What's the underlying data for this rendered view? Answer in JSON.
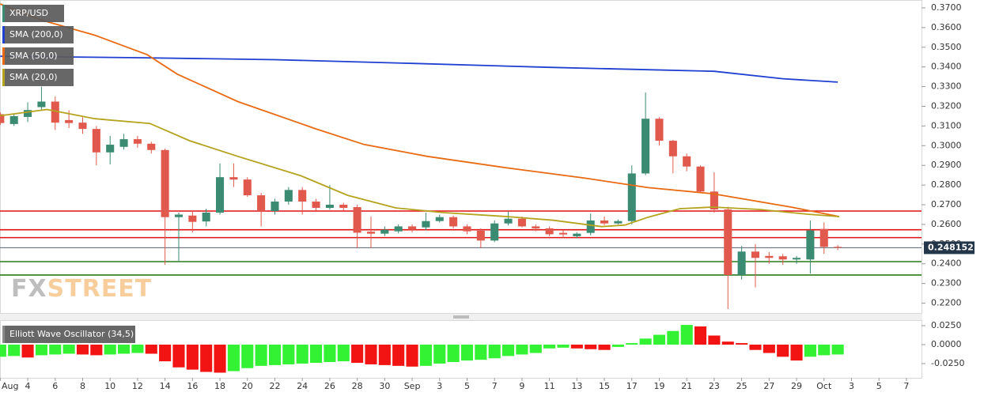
{
  "chart_data": {
    "type": "candlestick",
    "legend": [
      "XRP/USD",
      "SMA (200,0)",
      "SMA (50,0)",
      "SMA (20,0)"
    ],
    "legend_colors": [
      "#3b8a72",
      "#1f3fd0",
      "#e86a12",
      "#b5a21e"
    ],
    "watermark": [
      "FX",
      "STREET"
    ],
    "up_color": "#3b8a72",
    "down_color": "#e0594c",
    "xlim": [
      -0.02,
      67.1
    ],
    "xticks": [
      {
        "value": 0,
        "label": "Aug"
      },
      {
        "value": 2,
        "label": "4"
      },
      {
        "value": 4,
        "label": "6"
      },
      {
        "value": 6,
        "label": "8"
      },
      {
        "value": 8,
        "label": "10"
      },
      {
        "value": 10,
        "label": "12"
      },
      {
        "value": 12,
        "label": "14"
      },
      {
        "value": 14,
        "label": "16"
      },
      {
        "value": 16,
        "label": "18"
      },
      {
        "value": 18,
        "label": "20"
      },
      {
        "value": 20,
        "label": "22"
      },
      {
        "value": 22,
        "label": "24"
      },
      {
        "value": 24,
        "label": "26"
      },
      {
        "value": 26,
        "label": "28"
      },
      {
        "value": 28,
        "label": "30"
      },
      {
        "value": 30,
        "label": "Sep"
      },
      {
        "value": 32,
        "label": "3"
      },
      {
        "value": 34,
        "label": "5"
      },
      {
        "value": 36,
        "label": "7"
      },
      {
        "value": 38,
        "label": "9"
      },
      {
        "value": 40,
        "label": "11"
      },
      {
        "value": 42,
        "label": "13"
      },
      {
        "value": 44,
        "label": "15"
      },
      {
        "value": 46,
        "label": "17"
      },
      {
        "value": 48,
        "label": "19"
      },
      {
        "value": 50,
        "label": "21"
      },
      {
        "value": 52,
        "label": "23"
      },
      {
        "value": 54,
        "label": "25"
      },
      {
        "value": 56,
        "label": "27"
      },
      {
        "value": 58,
        "label": "29"
      },
      {
        "value": 60,
        "label": "Oct"
      },
      {
        "value": 62,
        "label": "3"
      },
      {
        "value": 64,
        "label": "5"
      },
      {
        "value": 66,
        "label": "7"
      }
    ],
    "ylim": [
      0.2146,
      0.374
    ],
    "yticks": [
      {
        "value": 0.22,
        "label": "0.2200"
      },
      {
        "value": 0.23,
        "label": "0.2300"
      },
      {
        "value": 0.24,
        "label": "0.2400"
      },
      {
        "value": 0.25,
        "label": "0.2500"
      },
      {
        "value": 0.26,
        "label": "0.2600"
      },
      {
        "value": 0.27,
        "label": "0.2700"
      },
      {
        "value": 0.28,
        "label": "0.2800"
      },
      {
        "value": 0.29,
        "label": "0.2900"
      },
      {
        "value": 0.3,
        "label": "0.3000"
      },
      {
        "value": 0.31,
        "label": "0.3100"
      },
      {
        "value": 0.32,
        "label": "0.3200"
      },
      {
        "value": 0.33,
        "label": "0.3300"
      },
      {
        "value": 0.34,
        "label": "0.3400"
      },
      {
        "value": 0.35,
        "label": "0.3500"
      },
      {
        "value": 0.36,
        "label": "0.3600"
      },
      {
        "value": 0.37,
        "label": "0.3700"
      }
    ],
    "x": [
      0,
      1,
      2,
      3,
      4,
      5,
      6,
      7,
      8,
      9,
      10,
      11,
      12,
      13,
      14,
      15,
      16,
      17,
      18,
      19,
      20,
      21,
      22,
      23,
      24,
      25,
      26,
      27,
      28,
      29,
      30,
      31,
      32,
      33,
      34,
      35,
      36,
      37,
      38,
      39,
      40,
      41,
      42,
      43,
      44,
      45,
      46,
      47,
      48,
      49,
      50,
      51,
      52,
      53,
      54,
      55,
      56,
      57,
      58,
      59,
      60,
      61
    ],
    "open": [
      0.316,
      0.311,
      0.3146,
      0.3196,
      0.3224,
      0.313,
      0.3117,
      0.3085,
      0.2966,
      0.2994,
      0.3033,
      0.301,
      0.2978,
      0.2637,
      0.2645,
      0.2615,
      0.266,
      0.284,
      0.2828,
      0.2748,
      0.2668,
      0.2716,
      0.2775,
      0.2716,
      0.2684,
      0.27,
      0.2688,
      0.2563,
      0.2553,
      0.2565,
      0.259,
      0.2585,
      0.2617,
      0.2637,
      0.259,
      0.2568,
      0.2518,
      0.2605,
      0.2629,
      0.259,
      0.258,
      0.2557,
      0.254,
      0.2557,
      0.262,
      0.2605,
      0.2617,
      0.2859,
      0.3137,
      0.3025,
      0.2946,
      0.2894,
      0.2767,
      0.2676,
      0.2343,
      0.2462,
      0.244,
      0.2438,
      0.2422,
      0.2422,
      0.2577,
      0.2486
    ],
    "high": [
      0.317,
      0.316,
      0.322,
      0.33,
      0.325,
      0.318,
      0.3145,
      0.31,
      0.305,
      0.306,
      0.305,
      0.302,
      0.2985,
      0.266,
      0.267,
      0.268,
      0.291,
      0.291,
      0.284,
      0.276,
      0.273,
      0.279,
      0.279,
      0.273,
      0.28,
      0.271,
      0.27,
      0.264,
      0.259,
      0.26,
      0.26,
      0.266,
      0.265,
      0.2645,
      0.26,
      0.258,
      0.262,
      0.2665,
      0.264,
      0.26,
      0.259,
      0.257,
      0.256,
      0.2655,
      0.264,
      0.2625,
      0.29,
      0.327,
      0.3145,
      0.303,
      0.296,
      0.29,
      0.2865,
      0.269,
      0.249,
      0.25,
      0.246,
      0.245,
      0.244,
      0.262,
      0.261,
      0.2495
    ],
    "low": [
      0.3105,
      0.31,
      0.312,
      0.318,
      0.308,
      0.309,
      0.306,
      0.29,
      0.2905,
      0.298,
      0.299,
      0.296,
      0.2395,
      0.241,
      0.256,
      0.259,
      0.265,
      0.279,
      0.274,
      0.259,
      0.265,
      0.27,
      0.265,
      0.267,
      0.2675,
      0.267,
      0.248,
      0.248,
      0.254,
      0.2555,
      0.256,
      0.257,
      0.261,
      0.258,
      0.255,
      0.248,
      0.251,
      0.2595,
      0.2585,
      0.2565,
      0.254,
      0.253,
      0.253,
      0.2545,
      0.2595,
      0.26,
      0.26,
      0.285,
      0.3,
      0.286,
      0.287,
      0.276,
      0.266,
      0.217,
      0.232,
      0.228,
      0.24,
      0.2395,
      0.24,
      0.235,
      0.245,
      0.247
    ],
    "close": [
      0.3115,
      0.315,
      0.3181,
      0.3224,
      0.3117,
      0.3115,
      0.3085,
      0.2966,
      0.3005,
      0.3033,
      0.301,
      0.2978,
      0.2637,
      0.265,
      0.2613,
      0.266,
      0.284,
      0.2828,
      0.2748,
      0.2668,
      0.2716,
      0.2775,
      0.2716,
      0.2684,
      0.27,
      0.2684,
      0.2558,
      0.2553,
      0.2573,
      0.259,
      0.2573,
      0.2617,
      0.2637,
      0.259,
      0.2565,
      0.2518,
      0.2605,
      0.2629,
      0.259,
      0.258,
      0.255,
      0.2549,
      0.2553,
      0.262,
      0.2605,
      0.2617,
      0.2859,
      0.3137,
      0.3025,
      0.2946,
      0.2894,
      0.2767,
      0.2676,
      0.2343,
      0.2462,
      0.243,
      0.243,
      0.2422,
      0.243,
      0.2569,
      0.2486,
      0.2482
    ],
    "lines": [
      {
        "name": "SMA (200,0)",
        "color": "#1f3fd0",
        "x": [
          0,
          10,
          20,
          30,
          40,
          46,
          52,
          57,
          61
        ],
        "values": [
          0.3454,
          0.3447,
          0.3437,
          0.3418,
          0.3398,
          0.3388,
          0.3378,
          0.334,
          0.3323
        ]
      },
      {
        "name": "SMA (50,0)",
        "color": "#e86a12",
        "x": [
          0,
          2.9,
          6.9,
          10.7,
          12.9,
          17.3,
          23,
          26.5,
          31.1,
          36.9,
          42.6,
          47.2,
          51.9,
          57.6,
          61.1
        ],
        "values": [
          0.372,
          0.364,
          0.3561,
          0.3462,
          0.3363,
          0.3224,
          0.3085,
          0.3006,
          0.2946,
          0.2887,
          0.2835,
          0.2787,
          0.2756,
          0.2688,
          0.264
        ]
      },
      {
        "name": "SMA (20,0)",
        "color": "#b5a21e",
        "x": [
          0,
          3.4,
          6.9,
          10.9,
          13.8,
          17.3,
          21.9,
          25.3,
          28.8,
          32.3,
          36.9,
          40.3,
          43.8,
          45.5,
          47.2,
          49.5,
          51.9,
          55.3,
          58.8,
          61.1
        ],
        "values": [
          0.3152,
          0.3184,
          0.3137,
          0.3113,
          0.3025,
          0.2946,
          0.2847,
          0.2748,
          0.2684,
          0.266,
          0.264,
          0.2621,
          0.2589,
          0.2597,
          0.2637,
          0.268,
          0.2688,
          0.2676,
          0.2652,
          0.264
        ]
      }
    ],
    "levels": [
      {
        "value": 0.2668,
        "color": "#e01010"
      },
      {
        "value": 0.2573,
        "color": "#e01010"
      },
      {
        "value": 0.2533,
        "color": "#e01010"
      },
      {
        "value": 0.2411,
        "color": "#2a7a1a"
      },
      {
        "value": 0.2343,
        "color": "#2a7a1a"
      }
    ],
    "last_price": 0.248152,
    "last_price_label": "0.248152",
    "oscillator": {
      "name": "Elliott Wave Oscillator (34,5)",
      "up_color": "#33f233",
      "down_color": "#f21313",
      "ylim": [
        -0.0438,
        0.0313
      ],
      "yticks": [
        {
          "value": 0.025,
          "label": "0.0250"
        },
        {
          "value": 0,
          "label": "0.0000"
        },
        {
          "value": -0.025,
          "label": "-0.0250"
        }
      ],
      "values": [
        -0.016,
        -0.015,
        -0.017,
        -0.014,
        -0.013,
        -0.012,
        -0.013,
        -0.014,
        -0.013,
        -0.012,
        -0.011,
        -0.012,
        -0.022,
        -0.03,
        -0.033,
        -0.036,
        -0.037,
        -0.035,
        -0.031,
        -0.028,
        -0.027,
        -0.026,
        -0.025,
        -0.024,
        -0.023,
        -0.022,
        -0.024,
        -0.026,
        -0.027,
        -0.028,
        -0.029,
        -0.028,
        -0.025,
        -0.023,
        -0.021,
        -0.02,
        -0.018,
        -0.015,
        -0.013,
        -0.011,
        -0.005,
        -0.004,
        -0.005,
        -0.006,
        -0.007,
        -0.003,
        0.002,
        0.008,
        0.013,
        0.018,
        0.026,
        0.024,
        0.012,
        0.004,
        0.002,
        -0.007,
        -0.011,
        -0.016,
        -0.021,
        -0.016,
        -0.014,
        -0.013
      ]
    }
  }
}
